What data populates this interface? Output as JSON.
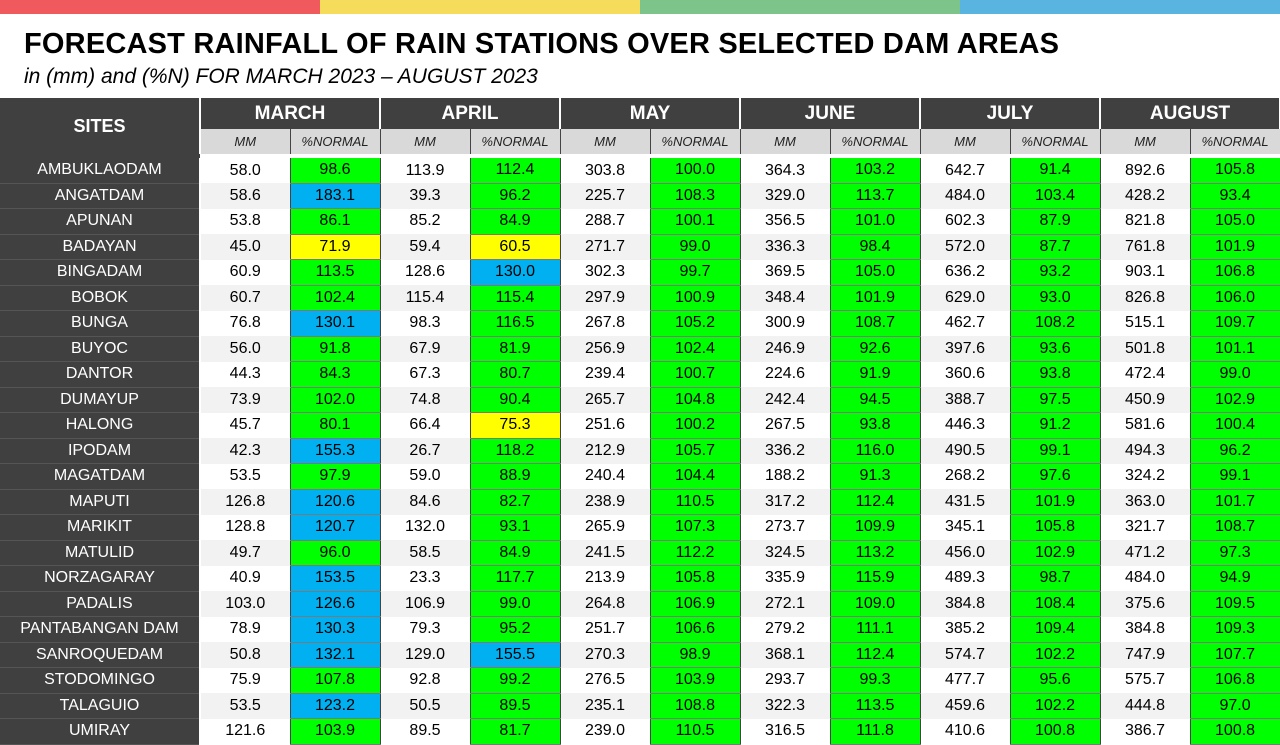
{
  "title": "FORECAST RAINFALL OF RAIN STATIONS OVER SELECTED DAM AREAS",
  "subtitle": "in (mm) and (%N) FOR MARCH 2023 – AUGUST 2023",
  "colors": {
    "top_band": [
      "#f05a5f",
      "#f5dc5a",
      "#7cc48a",
      "#5ab4e0"
    ],
    "header_bg": "#404040",
    "subheader_bg": "#d9d9d9",
    "near_normal": "#00ff00",
    "above_normal": "#00b0f0",
    "below_normal": "#ffff00"
  },
  "chart_data": {
    "type": "table",
    "title": "FORECAST RAINFALL OF RAIN STATIONS OVER SELECTED DAM AREAS",
    "subtitle": "in (mm) and (%N) FOR MARCH 2023 – AUGUST 2023",
    "site_header": "SITES",
    "months": [
      "MARCH",
      "APRIL",
      "MAY",
      "JUNE",
      "JULY",
      "AUGUST"
    ],
    "sub_headers": {
      "mm": "MM",
      "pct": "%NORMAL"
    },
    "rows": [
      {
        "site": "AMBUKLAODAM",
        "mm": [
          "58.0",
          "113.9",
          "303.8",
          "364.3",
          "642.7",
          "892.6"
        ],
        "pct": [
          "98.6",
          "112.4",
          "100.0",
          "103.2",
          "91.4",
          "105.8"
        ],
        "class": [
          "near",
          "near",
          "near",
          "near",
          "near",
          "near"
        ]
      },
      {
        "site": "ANGATDAM",
        "mm": [
          "58.6",
          "39.3",
          "225.7",
          "329.0",
          "484.0",
          "428.2"
        ],
        "pct": [
          "183.1",
          "96.2",
          "108.3",
          "113.7",
          "103.4",
          "93.4"
        ],
        "class": [
          "above",
          "near",
          "near",
          "near",
          "near",
          "near"
        ]
      },
      {
        "site": "APUNAN",
        "mm": [
          "53.8",
          "85.2",
          "288.7",
          "356.5",
          "602.3",
          "821.8"
        ],
        "pct": [
          "86.1",
          "84.9",
          "100.1",
          "101.0",
          "87.9",
          "105.0"
        ],
        "class": [
          "near",
          "near",
          "near",
          "near",
          "near",
          "near"
        ]
      },
      {
        "site": "BADAYAN",
        "mm": [
          "45.0",
          "59.4",
          "271.7",
          "336.3",
          "572.0",
          "761.8"
        ],
        "pct": [
          "71.9",
          "60.5",
          "99.0",
          "98.4",
          "87.7",
          "101.9"
        ],
        "class": [
          "below",
          "below",
          "near",
          "near",
          "near",
          "near"
        ]
      },
      {
        "site": "BINGADAM",
        "mm": [
          "60.9",
          "128.6",
          "302.3",
          "369.5",
          "636.2",
          "903.1"
        ],
        "pct": [
          "113.5",
          "130.0",
          "99.7",
          "105.0",
          "93.2",
          "106.8"
        ],
        "class": [
          "near",
          "above",
          "near",
          "near",
          "near",
          "near"
        ]
      },
      {
        "site": "BOBOK",
        "mm": [
          "60.7",
          "115.4",
          "297.9",
          "348.4",
          "629.0",
          "826.8"
        ],
        "pct": [
          "102.4",
          "115.4",
          "100.9",
          "101.9",
          "93.0",
          "106.0"
        ],
        "class": [
          "near",
          "near",
          "near",
          "near",
          "near",
          "near"
        ]
      },
      {
        "site": "BUNGA",
        "mm": [
          "76.8",
          "98.3",
          "267.8",
          "300.9",
          "462.7",
          "515.1"
        ],
        "pct": [
          "130.1",
          "116.5",
          "105.2",
          "108.7",
          "108.2",
          "109.7"
        ],
        "class": [
          "above",
          "near",
          "near",
          "near",
          "near",
          "near"
        ]
      },
      {
        "site": "BUYOC",
        "mm": [
          "56.0",
          "67.9",
          "256.9",
          "246.9",
          "397.6",
          "501.8"
        ],
        "pct": [
          "91.8",
          "81.9",
          "102.4",
          "92.6",
          "93.6",
          "101.1"
        ],
        "class": [
          "near",
          "near",
          "near",
          "near",
          "near",
          "near"
        ]
      },
      {
        "site": "DANTOR",
        "mm": [
          "44.3",
          "67.3",
          "239.4",
          "224.6",
          "360.6",
          "472.4"
        ],
        "pct": [
          "84.3",
          "80.7",
          "100.7",
          "91.9",
          "93.8",
          "99.0"
        ],
        "class": [
          "near",
          "near",
          "near",
          "near",
          "near",
          "near"
        ]
      },
      {
        "site": "DUMAYUP",
        "mm": [
          "73.9",
          "74.8",
          "265.7",
          "242.4",
          "388.7",
          "450.9"
        ],
        "pct": [
          "102.0",
          "90.4",
          "104.8",
          "94.5",
          "97.5",
          "102.9"
        ],
        "class": [
          "near",
          "near",
          "near",
          "near",
          "near",
          "near"
        ]
      },
      {
        "site": "HALONG",
        "mm": [
          "45.7",
          "66.4",
          "251.6",
          "267.5",
          "446.3",
          "581.6"
        ],
        "pct": [
          "80.1",
          "75.3",
          "100.2",
          "93.8",
          "91.2",
          "100.4"
        ],
        "class": [
          "near",
          "below",
          "near",
          "near",
          "near",
          "near"
        ]
      },
      {
        "site": "IPODAM",
        "mm": [
          "42.3",
          "26.7",
          "212.9",
          "336.2",
          "490.5",
          "494.3"
        ],
        "pct": [
          "155.3",
          "118.2",
          "105.7",
          "116.0",
          "99.1",
          "96.2"
        ],
        "class": [
          "above",
          "near",
          "near",
          "near",
          "near",
          "near"
        ]
      },
      {
        "site": "MAGATDAM",
        "mm": [
          "53.5",
          "59.0",
          "240.4",
          "188.2",
          "268.2",
          "324.2"
        ],
        "pct": [
          "97.9",
          "88.9",
          "104.4",
          "91.3",
          "97.6",
          "99.1"
        ],
        "class": [
          "near",
          "near",
          "near",
          "near",
          "near",
          "near"
        ]
      },
      {
        "site": "MAPUTI",
        "mm": [
          "126.8",
          "84.6",
          "238.9",
          "317.2",
          "431.5",
          "363.0"
        ],
        "pct": [
          "120.6",
          "82.7",
          "110.5",
          "112.4",
          "101.9",
          "101.7"
        ],
        "class": [
          "above",
          "near",
          "near",
          "near",
          "near",
          "near"
        ]
      },
      {
        "site": "MARIKIT",
        "mm": [
          "128.8",
          "132.0",
          "265.9",
          "273.7",
          "345.1",
          "321.7"
        ],
        "pct": [
          "120.7",
          "93.1",
          "107.3",
          "109.9",
          "105.8",
          "108.7"
        ],
        "class": [
          "above",
          "near",
          "near",
          "near",
          "near",
          "near"
        ]
      },
      {
        "site": "MATULID",
        "mm": [
          "49.7",
          "58.5",
          "241.5",
          "324.5",
          "456.0",
          "471.2"
        ],
        "pct": [
          "96.0",
          "84.9",
          "112.2",
          "113.2",
          "102.9",
          "97.3"
        ],
        "class": [
          "near",
          "near",
          "near",
          "near",
          "near",
          "near"
        ]
      },
      {
        "site": "NORZAGARAY",
        "mm": [
          "40.9",
          "23.3",
          "213.9",
          "335.9",
          "489.3",
          "484.0"
        ],
        "pct": [
          "153.5",
          "117.7",
          "105.8",
          "115.9",
          "98.7",
          "94.9"
        ],
        "class": [
          "above",
          "near",
          "near",
          "near",
          "near",
          "near"
        ]
      },
      {
        "site": "PADALIS",
        "mm": [
          "103.0",
          "106.9",
          "264.8",
          "272.1",
          "384.8",
          "375.6"
        ],
        "pct": [
          "126.6",
          "99.0",
          "106.9",
          "109.0",
          "108.4",
          "109.5"
        ],
        "class": [
          "above",
          "near",
          "near",
          "near",
          "near",
          "near"
        ]
      },
      {
        "site": "PANTABANGAN DAM",
        "mm": [
          "78.9",
          "79.3",
          "251.7",
          "279.2",
          "385.2",
          "384.8"
        ],
        "pct": [
          "130.3",
          "95.2",
          "106.6",
          "111.1",
          "109.4",
          "109.3"
        ],
        "class": [
          "above",
          "near",
          "near",
          "near",
          "near",
          "near"
        ]
      },
      {
        "site": "SANROQUEDAM",
        "mm": [
          "50.8",
          "129.0",
          "270.3",
          "368.1",
          "574.7",
          "747.9"
        ],
        "pct": [
          "132.1",
          "155.5",
          "98.9",
          "112.4",
          "102.2",
          "107.7"
        ],
        "class": [
          "above",
          "above",
          "near",
          "near",
          "near",
          "near"
        ]
      },
      {
        "site": "STODOMINGO",
        "mm": [
          "75.9",
          "92.8",
          "276.5",
          "293.7",
          "477.7",
          "575.7"
        ],
        "pct": [
          "107.8",
          "99.2",
          "103.9",
          "99.3",
          "95.6",
          "106.8"
        ],
        "class": [
          "near",
          "near",
          "near",
          "near",
          "near",
          "near"
        ]
      },
      {
        "site": "TALAGUIO",
        "mm": [
          "53.5",
          "50.5",
          "235.1",
          "322.3",
          "459.6",
          "444.8"
        ],
        "pct": [
          "123.2",
          "89.5",
          "108.8",
          "113.5",
          "102.2",
          "97.0"
        ],
        "class": [
          "above",
          "near",
          "near",
          "near",
          "near",
          "near"
        ]
      },
      {
        "site": "UMIRAY",
        "mm": [
          "121.6",
          "89.5",
          "239.0",
          "316.5",
          "410.6",
          "386.7"
        ],
        "pct": [
          "103.9",
          "81.7",
          "110.5",
          "111.8",
          "100.8",
          "100.8"
        ],
        "class": [
          "near",
          "near",
          "near",
          "near",
          "near",
          "near"
        ]
      }
    ]
  }
}
